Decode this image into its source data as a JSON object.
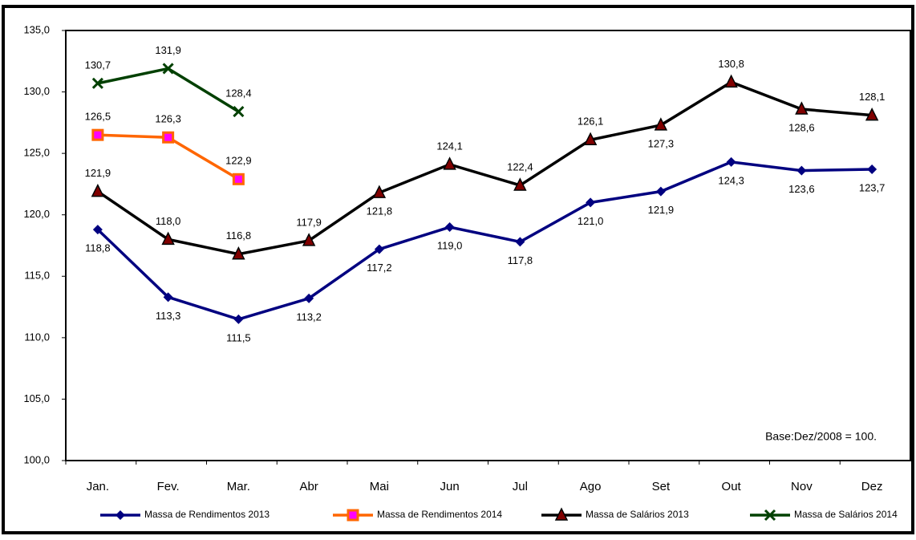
{
  "chart_data": {
    "type": "line",
    "annotation": "Base:Dez/2008  = 100.",
    "categories": [
      "Jan.",
      "Fev.",
      "Mar.",
      "Abr",
      "Mai",
      "Jun",
      "Jul",
      "Ago",
      "Set",
      "Out",
      "Nov",
      "Dez"
    ],
    "ylim": [
      100,
      135
    ],
    "yticks": [
      {
        "value": 100,
        "label": "100,0"
      },
      {
        "value": 105,
        "label": "105,0"
      },
      {
        "value": 110,
        "label": "110,0"
      },
      {
        "value": 115,
        "label": "115,0"
      },
      {
        "value": 120,
        "label": "120,0"
      },
      {
        "value": 125,
        "label": "125,0"
      },
      {
        "value": 130,
        "label": "130,0"
      },
      {
        "value": 135,
        "label": "135,0"
      }
    ],
    "grid": false,
    "legend": "bottom",
    "series": [
      {
        "name": "Massa de Rendimentos 2013",
        "color": "#000080",
        "marker": "diamond",
        "values": [
          118.8,
          113.3,
          111.5,
          113.2,
          117.2,
          119.0,
          117.8,
          121.0,
          121.9,
          124.3,
          123.6,
          123.7
        ],
        "value_labels": [
          "118,8",
          "113,3",
          "111,5",
          "113,2",
          "117,2",
          "119,0",
          "117,8",
          "121,0",
          "121,9",
          "124,3",
          "123,6",
          "123,7"
        ]
      },
      {
        "name": "Massa de Rendimentos 2014",
        "color": "#FF6600",
        "marker": "square",
        "values": [
          126.5,
          126.3,
          122.9,
          null,
          null,
          null,
          null,
          null,
          null,
          null,
          null,
          null
        ],
        "value_labels": [
          "126,5",
          "126,3",
          "122,9",
          null,
          null,
          null,
          null,
          null,
          null,
          null,
          null,
          null
        ]
      },
      {
        "name": "Massa de Salários 2013",
        "color": "#000000",
        "marker": "triangle",
        "values": [
          121.9,
          118.0,
          116.8,
          117.9,
          121.8,
          124.1,
          122.4,
          126.1,
          127.3,
          130.8,
          128.6,
          128.1
        ],
        "value_labels": [
          "121,9",
          "118,0",
          "116,8",
          "117,9",
          "121,8",
          "124,1",
          "122,4",
          "126,1",
          "127,3",
          "130,8",
          "128,6",
          "128,1"
        ]
      },
      {
        "name": "Massa de Salários 2014",
        "color": "#004000",
        "marker": "x",
        "values": [
          130.7,
          131.9,
          128.4,
          null,
          null,
          null,
          null,
          null,
          null,
          null,
          null,
          null
        ],
        "value_labels": [
          "130,7",
          "131,9",
          "128,4",
          null,
          null,
          null,
          null,
          null,
          null,
          null,
          null,
          null
        ]
      }
    ]
  }
}
